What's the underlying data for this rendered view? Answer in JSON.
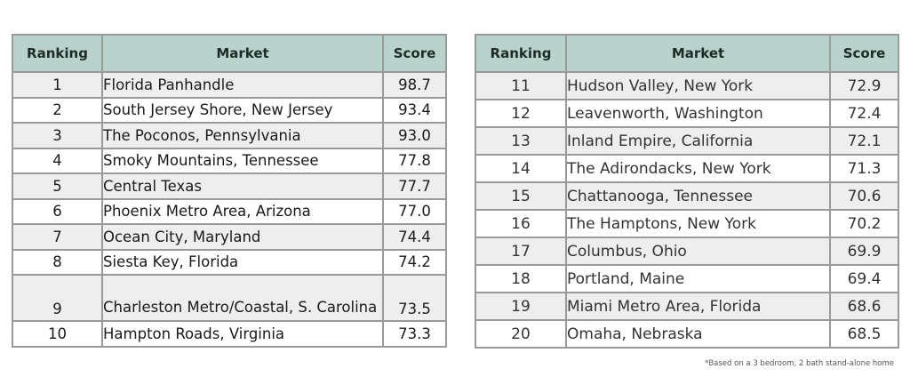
{
  "headers": {
    "ranking": "Ranking",
    "market": "Market",
    "score": "Score"
  },
  "left_table": [
    {
      "rank": "1",
      "market": "Florida Panhandle",
      "score": "98.7"
    },
    {
      "rank": "2",
      "market": "South Jersey Shore, New Jersey",
      "score": "93.4"
    },
    {
      "rank": "3",
      "market": "The Poconos, Pennsylvania",
      "score": "93.0"
    },
    {
      "rank": "4",
      "market": "Smoky Mountains, Tennessee",
      "score": "77.8"
    },
    {
      "rank": "5",
      "market": "Central Texas",
      "score": "77.7"
    },
    {
      "rank": "6",
      "market": "Phoenix Metro Area, Arizona",
      "score": "77.0"
    },
    {
      "rank": "7",
      "market": "Ocean City, Maryland",
      "score": "74.4"
    },
    {
      "rank": "8",
      "market": "Siesta Key, Florida",
      "score": "74.2"
    },
    {
      "rank": "9",
      "market": "Charleston Metro/Coastal, S. Carolina",
      "score": "73.5"
    },
    {
      "rank": "10",
      "market": "Hampton Roads, Virginia",
      "score": "73.3"
    }
  ],
  "right_table": [
    {
      "rank": "11",
      "market": "Hudson Valley, New York",
      "score": "72.9"
    },
    {
      "rank": "12",
      "market": "Leavenworth, Washington",
      "score": "72.4"
    },
    {
      "rank": "13",
      "market": "Inland Empire, California",
      "score": "72.1"
    },
    {
      "rank": "14",
      "market": "The Adirondacks, New York",
      "score": "71.3"
    },
    {
      "rank": "15",
      "market": "Chattanooga, Tennessee",
      "score": "70.6"
    },
    {
      "rank": "16",
      "market": "The Hamptons, New York",
      "score": "70.2"
    },
    {
      "rank": "17",
      "market": "Columbus, Ohio",
      "score": "69.9"
    },
    {
      "rank": "18",
      "market": "Portland, Maine",
      "score": "69.4"
    },
    {
      "rank": "19",
      "market": "Miami Metro Area, Florida",
      "score": "68.6"
    },
    {
      "rank": "20",
      "market": "Omaha, Nebraska",
      "score": "68.5"
    }
  ],
  "footnote": "*Based on a 3 bedroom, 2 bath stand-alone home"
}
